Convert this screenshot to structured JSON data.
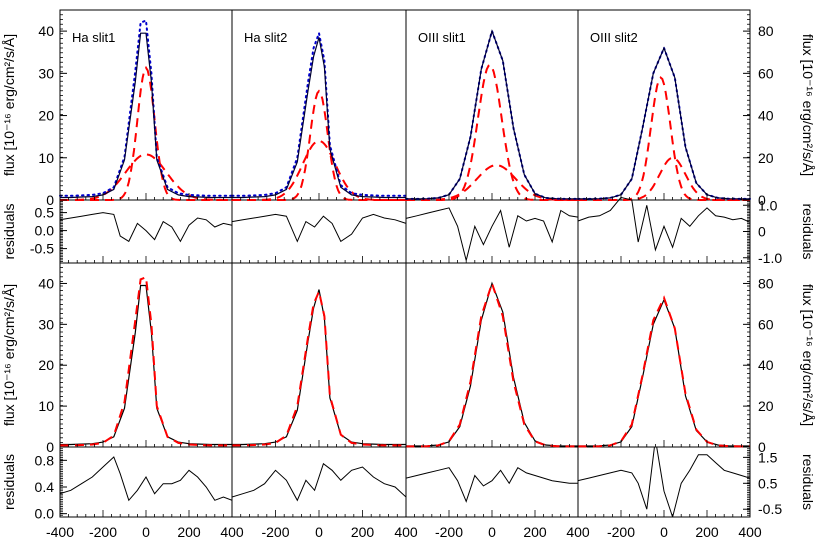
{
  "chart_data": {
    "type": "line",
    "x_ticks": [
      -400,
      -200,
      0,
      200,
      400
    ],
    "x_range": [
      -400,
      400
    ],
    "column_titles": [
      "Ha slit1",
      "Ha slit2",
      "OIII slit1",
      "OIII slit2"
    ],
    "labels": {
      "flux_ylabel_left": "flux [10⁻¹⁶ erg/cm²/s/Å]",
      "flux_ylabel_right": "flux [10⁻¹⁶ erg/cm²/s/Å]",
      "residuals_label": "residuals"
    },
    "axes": {
      "top_flux_left": {
        "ylim": [
          0,
          45
        ],
        "ticks": [
          0,
          10,
          20,
          30,
          40
        ]
      },
      "top_flux_right": {
        "ylim": [
          0,
          90
        ],
        "ticks": [
          0,
          20,
          40,
          60,
          80
        ]
      },
      "top_res_left": {
        "ylim": [
          -0.9,
          0.85
        ],
        "ticks": [
          0.5,
          0.0,
          -0.5
        ],
        "tick_labels": [
          "0.5",
          "0.0",
          "-0.5"
        ]
      },
      "top_res_right": {
        "ylim": [
          -1.2,
          1.2
        ],
        "ticks": [
          1.0,
          0,
          -1.0
        ],
        "tick_labels": [
          "1.0",
          "0",
          "-1.0"
        ]
      },
      "bottom_flux_left": {
        "ylim": [
          0,
          45
        ],
        "ticks": [
          0,
          10,
          20,
          30,
          40
        ]
      },
      "bottom_flux_right": {
        "ylim": [
          0,
          90
        ],
        "ticks": [
          0,
          20,
          40,
          60,
          80
        ]
      },
      "bottom_res_left": {
        "ylim": [
          -0.05,
          1.0
        ],
        "ticks": [
          0.8,
          0.4,
          0.0
        ],
        "tick_labels": [
          "0.8",
          "0.4",
          "0.0"
        ]
      },
      "bottom_res_right": {
        "ylim": [
          -0.8,
          1.9
        ],
        "ticks": [
          1.5,
          0.5,
          -0.5
        ],
        "tick_labels": [
          "1.5",
          "0.5",
          "-0.5"
        ]
      }
    },
    "panels": [
      {
        "title": "Ha slit1",
        "x": [
          -400,
          -350,
          -300,
          -250,
          -200,
          -150,
          -100,
          -50,
          -25,
          0,
          25,
          50,
          100,
          150,
          200,
          250,
          300,
          350,
          400
        ],
        "observed": [
          0.6,
          0.6,
          0.7,
          0.8,
          1.2,
          2.5,
          9.5,
          28.0,
          39.5,
          39.5,
          28.0,
          9.5,
          2.5,
          1.2,
          0.8,
          0.7,
          0.6,
          0.6,
          0.6
        ],
        "fit_total": [
          1.0,
          1.0,
          1.1,
          1.2,
          1.6,
          3.0,
          10.2,
          30.5,
          42.0,
          42.5,
          30.0,
          10.0,
          3.0,
          1.6,
          1.2,
          1.1,
          1.0,
          1.0,
          1.0
        ],
        "components": [
          {
            "amp": 31.3,
            "center": 0,
            "sigma": 40
          },
          {
            "amp": 10.8,
            "center": 0,
            "sigma": 95
          }
        ],
        "res_x": [
          -400,
          -350,
          -300,
          -250,
          -200,
          -150,
          -120,
          -80,
          -40,
          0,
          40,
          80,
          120,
          160,
          200,
          240,
          280,
          320,
          360,
          400
        ],
        "residuals": [
          0.3,
          0.35,
          0.4,
          0.45,
          0.5,
          0.45,
          -0.15,
          -0.3,
          0.2,
          0.0,
          -0.25,
          0.25,
          0.1,
          -0.3,
          0.15,
          0.35,
          0.3,
          0.1,
          0.2,
          0.15
        ]
      },
      {
        "title": "Ha slit2",
        "x": [
          -400,
          -350,
          -300,
          -250,
          -200,
          -150,
          -100,
          -50,
          -25,
          0,
          25,
          50,
          100,
          150,
          200,
          250,
          300,
          350,
          400
        ],
        "observed": [
          0.6,
          0.6,
          0.7,
          0.8,
          1.2,
          2.5,
          9.0,
          26.0,
          34.0,
          38.5,
          31.5,
          12.0,
          3.0,
          1.2,
          0.8,
          0.7,
          0.6,
          0.6,
          0.6
        ],
        "fit_total": [
          1.0,
          1.0,
          1.1,
          1.2,
          1.6,
          3.0,
          10.0,
          28.0,
          36.0,
          39.5,
          33.0,
          13.0,
          3.5,
          1.6,
          1.2,
          1.1,
          1.0,
          1.0,
          1.0
        ],
        "components": [
          {
            "amp": 25.8,
            "center": 0,
            "sigma": 40
          },
          {
            "amp": 14.0,
            "center": 0,
            "sigma": 75
          }
        ],
        "res_x": [
          -400,
          -350,
          -300,
          -250,
          -200,
          -150,
          -100,
          -60,
          -20,
          20,
          60,
          100,
          150,
          200,
          250,
          300,
          350,
          400
        ],
        "residuals": [
          0.25,
          0.3,
          0.35,
          0.4,
          0.45,
          0.4,
          -0.3,
          0.25,
          0.1,
          0.4,
          0.2,
          -0.3,
          -0.1,
          0.35,
          0.45,
          0.35,
          0.3,
          0.2
        ]
      },
      {
        "title": "OIII slit1",
        "x": [
          -400,
          -350,
          -300,
          -250,
          -200,
          -150,
          -100,
          -50,
          0,
          50,
          100,
          150,
          200,
          250,
          300,
          350,
          400
        ],
        "observed": [
          0.5,
          0.5,
          0.6,
          1.0,
          2.5,
          10.0,
          30.0,
          62.0,
          80.0,
          66.0,
          34.0,
          12.0,
          3.0,
          1.0,
          0.6,
          0.5,
          0.5
        ],
        "fit_total": [
          0.5,
          0.5,
          0.6,
          1.0,
          2.5,
          10.0,
          30.0,
          62.0,
          80.0,
          66.0,
          34.0,
          12.0,
          3.0,
          1.0,
          0.6,
          0.5,
          0.5
        ],
        "components": [
          {
            "amp": 64.0,
            "center": -10,
            "sigma": 55
          },
          {
            "amp": 16.5,
            "center": 20,
            "sigma": 90
          }
        ],
        "res_x": [
          -400,
          -350,
          -300,
          -250,
          -200,
          -160,
          -120,
          -80,
          -40,
          0,
          40,
          80,
          120,
          160,
          200,
          240,
          280,
          320,
          360,
          400
        ],
        "residuals": [
          0.5,
          0.6,
          0.7,
          0.8,
          0.9,
          0.2,
          -1.1,
          0.2,
          -0.5,
          0.2,
          0.8,
          -0.6,
          0.6,
          0.4,
          0.5,
          0.4,
          -0.4,
          0.8,
          0.6,
          0.55
        ]
      },
      {
        "title": "OIII slit2",
        "x": [
          -400,
          -350,
          -300,
          -250,
          -200,
          -150,
          -100,
          -50,
          0,
          50,
          100,
          150,
          200,
          250,
          300,
          350,
          400
        ],
        "observed": [
          0.5,
          0.5,
          0.6,
          1.0,
          2.5,
          10.0,
          34.0,
          60.0,
          72.0,
          58.0,
          25.0,
          8.0,
          2.5,
          1.0,
          0.6,
          0.5,
          0.5
        ],
        "fit_total": [
          0.5,
          0.5,
          0.6,
          1.0,
          2.5,
          10.0,
          34.0,
          60.0,
          72.0,
          58.0,
          25.0,
          8.0,
          2.5,
          1.0,
          0.6,
          0.5,
          0.5
        ],
        "components": [
          {
            "amp": 58.0,
            "center": -15,
            "sigma": 45
          },
          {
            "amp": 20.0,
            "center": 40,
            "sigma": 60
          }
        ],
        "res_x": [
          -400,
          -350,
          -300,
          -250,
          -200,
          -150,
          -120,
          -80,
          -40,
          0,
          40,
          80,
          120,
          160,
          200,
          240,
          280,
          320,
          360,
          400
        ],
        "residuals": [
          0.4,
          0.55,
          0.6,
          0.8,
          1.3,
          1.2,
          -0.4,
          1.0,
          -0.7,
          0.2,
          -0.6,
          0.5,
          0.2,
          0.6,
          0.9,
          0.6,
          0.55,
          0.45,
          0.5,
          0.35
        ]
      }
    ],
    "bottom_panels": [
      {
        "observed": [
          0.6,
          0.6,
          0.7,
          0.8,
          1.2,
          2.5,
          9.5,
          28.0,
          39.5,
          39.5,
          28.0,
          9.5,
          2.5,
          1.2,
          0.8,
          0.7,
          0.6,
          0.6,
          0.6
        ],
        "fit": [
          0.4,
          0.4,
          0.5,
          0.6,
          1.0,
          2.8,
          11.0,
          31.0,
          41.0,
          41.5,
          30.0,
          10.0,
          2.5,
          1.0,
          0.6,
          0.5,
          0.4,
          0.4,
          0.4
        ],
        "res_x": [
          -400,
          -350,
          -300,
          -250,
          -200,
          -150,
          -120,
          -80,
          -40,
          0,
          40,
          80,
          120,
          160,
          200,
          240,
          280,
          320,
          360,
          400
        ],
        "residuals": [
          0.3,
          0.35,
          0.45,
          0.55,
          0.7,
          0.85,
          0.6,
          0.2,
          0.35,
          0.55,
          0.3,
          0.45,
          0.45,
          0.5,
          0.65,
          0.55,
          0.4,
          0.2,
          0.25,
          0.2
        ]
      },
      {
        "observed": [
          0.6,
          0.6,
          0.7,
          0.8,
          1.2,
          2.5,
          9.0,
          26.0,
          34.0,
          38.5,
          31.5,
          12.0,
          3.0,
          1.2,
          0.8,
          0.7,
          0.6,
          0.6,
          0.6
        ],
        "fit": [
          0.4,
          0.4,
          0.5,
          0.6,
          1.0,
          2.8,
          10.0,
          27.0,
          35.0,
          38.0,
          32.0,
          12.5,
          3.0,
          1.0,
          0.6,
          0.5,
          0.4,
          0.4,
          0.4
        ],
        "res_x": [
          -400,
          -350,
          -300,
          -250,
          -200,
          -150,
          -100,
          -60,
          -20,
          20,
          60,
          100,
          150,
          200,
          250,
          300,
          350,
          400
        ],
        "residuals": [
          0.25,
          0.3,
          0.35,
          0.45,
          0.65,
          0.5,
          0.2,
          0.5,
          0.35,
          0.75,
          0.65,
          0.5,
          0.65,
          0.7,
          0.55,
          0.45,
          0.4,
          0.25
        ]
      },
      {
        "observed": [
          0.5,
          0.5,
          0.6,
          1.0,
          2.5,
          10.0,
          30.0,
          62.0,
          80.0,
          66.0,
          34.0,
          12.0,
          3.0,
          1.0,
          0.6,
          0.5,
          0.5
        ],
        "fit": [
          0.3,
          0.3,
          0.4,
          0.8,
          2.8,
          11.0,
          32.0,
          64.0,
          80.0,
          64.0,
          32.0,
          11.0,
          2.8,
          0.8,
          0.4,
          0.3,
          0.3
        ],
        "res_x": [
          -400,
          -350,
          -300,
          -250,
          -200,
          -160,
          -120,
          -80,
          -40,
          0,
          40,
          80,
          120,
          160,
          200,
          240,
          280,
          320,
          360,
          400
        ],
        "residuals": [
          0.7,
          0.8,
          0.9,
          1.0,
          1.1,
          0.6,
          -0.2,
          0.8,
          0.4,
          0.6,
          1.0,
          0.5,
          1.1,
          0.9,
          0.8,
          0.7,
          0.6,
          0.55,
          0.5,
          0.5
        ]
      },
      {
        "observed": [
          0.5,
          0.5,
          0.6,
          1.0,
          2.5,
          10.0,
          34.0,
          60.0,
          72.0,
          58.0,
          25.0,
          8.0,
          2.5,
          1.0,
          0.6,
          0.5,
          0.5
        ],
        "fit": [
          0.3,
          0.3,
          0.4,
          0.8,
          2.8,
          11.0,
          35.0,
          62.0,
          73.0,
          58.0,
          26.0,
          8.5,
          2.5,
          0.8,
          0.4,
          0.3,
          0.3
        ],
        "res_x": [
          -400,
          -350,
          -300,
          -250,
          -200,
          -150,
          -120,
          -80,
          -40,
          0,
          40,
          80,
          120,
          160,
          200,
          240,
          280,
          320,
          360,
          400
        ],
        "residuals": [
          0.6,
          0.7,
          0.8,
          0.9,
          1.0,
          0.9,
          0.5,
          -0.5,
          2.2,
          0.2,
          -0.8,
          0.5,
          1.0,
          1.6,
          1.6,
          1.3,
          1.0,
          0.9,
          0.8,
          0.7
        ]
      }
    ]
  }
}
